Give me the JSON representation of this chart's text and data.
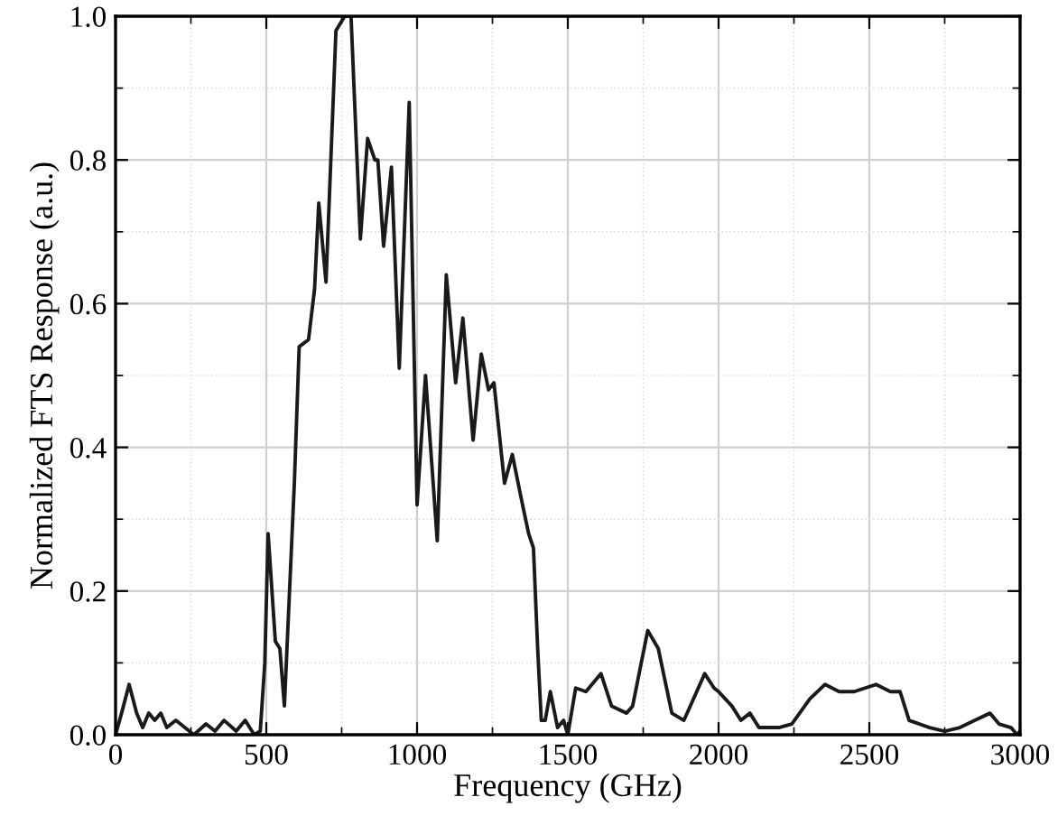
{
  "chart_data": {
    "type": "line",
    "xlabel": "Frequency (GHz)",
    "ylabel": "Normalized FTS Response (a.u.)",
    "xlim": [
      0,
      3000
    ],
    "xticks": [
      0,
      500,
      1000,
      1500,
      2000,
      2500,
      3000
    ],
    "ylim": [
      0,
      1.0
    ],
    "yticks": [
      {
        "value": 0,
        "label": "0.0"
      },
      0.2,
      0.4,
      0.6,
      0.8,
      {
        "value": 1.0,
        "label": "1.0"
      }
    ],
    "grid": true,
    "marker": "none",
    "line_style": "solid",
    "series": [
      {
        "color": "#1a1a1a",
        "x": [
          0,
          20,
          45,
          70,
          90,
          110,
          130,
          150,
          170,
          200,
          230,
          260,
          300,
          330,
          360,
          400,
          430,
          460,
          480,
          495,
          506,
          530,
          545,
          560,
          593,
          609,
          640,
          660,
          674,
          698,
          731,
          760,
          781,
          812,
          836,
          860,
          870,
          889,
          915,
          941,
          974,
          1000,
          1028,
          1067,
          1097,
          1128,
          1152,
          1186,
          1213,
          1237,
          1255,
          1290,
          1316,
          1345,
          1370,
          1386,
          1400,
          1412,
          1425,
          1442,
          1466,
          1486,
          1500,
          1526,
          1560,
          1610,
          1645,
          1695,
          1715,
          1765,
          1800,
          1845,
          1885,
          1954,
          1985,
          2000,
          2044,
          2074,
          2104,
          2134,
          2200,
          2243,
          2303,
          2353,
          2400,
          2450,
          2522,
          2570,
          2602,
          2632,
          2700,
          2750,
          2800,
          2850,
          2900,
          2930,
          2970,
          2990,
          3000
        ],
        "values": [
          0.0,
          0.03,
          0.07,
          0.03,
          0.01,
          0.03,
          0.02,
          0.03,
          0.01,
          0.02,
          0.01,
          0.0,
          0.015,
          0.005,
          0.02,
          0.005,
          0.02,
          0.0,
          0.005,
          0.1,
          0.28,
          0.13,
          0.12,
          0.04,
          0.35,
          0.54,
          0.55,
          0.62,
          0.74,
          0.63,
          0.98,
          1.0,
          1.0,
          0.69,
          0.83,
          0.8,
          0.8,
          0.68,
          0.79,
          0.51,
          0.88,
          0.32,
          0.5,
          0.27,
          0.64,
          0.49,
          0.58,
          0.41,
          0.53,
          0.48,
          0.49,
          0.35,
          0.39,
          0.33,
          0.28,
          0.26,
          0.12,
          0.02,
          0.02,
          0.06,
          0.01,
          0.02,
          0.0,
          0.065,
          0.06,
          0.085,
          0.04,
          0.03,
          0.04,
          0.145,
          0.12,
          0.03,
          0.02,
          0.085,
          0.065,
          0.06,
          0.04,
          0.02,
          0.03,
          0.01,
          0.01,
          0.015,
          0.05,
          0.07,
          0.06,
          0.06,
          0.07,
          0.06,
          0.06,
          0.02,
          0.01,
          0.005,
          0.01,
          0.02,
          0.03,
          0.015,
          0.01,
          0.0,
          0.005
        ]
      }
    ]
  }
}
